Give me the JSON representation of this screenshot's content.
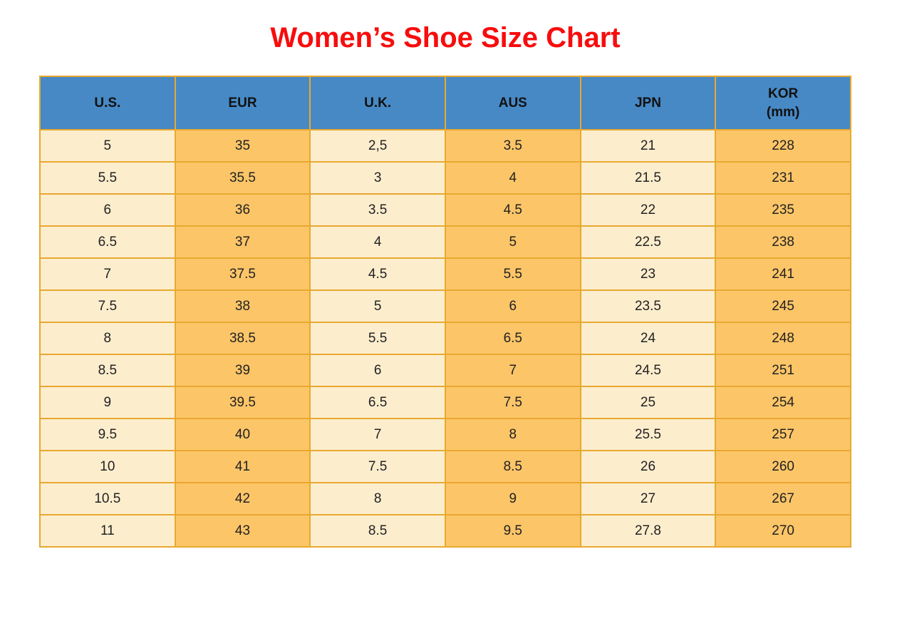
{
  "title": "Women’s Shoe Size Chart",
  "colors": {
    "title_red": "#f70d0d",
    "header_blue": "#4789c5",
    "cell_orange": "#fcc568",
    "cell_cream": "#fcedcd",
    "grid_gold": "#e8a92f",
    "text_dark": "#222222"
  },
  "chart_data": {
    "type": "table",
    "title": "Women’s Shoe Size Chart",
    "legend_position": "none",
    "grid": true,
    "columns": [
      {
        "label": "U.S.",
        "sublabel": ""
      },
      {
        "label": "EUR",
        "sublabel": ""
      },
      {
        "label": "U.K.",
        "sublabel": ""
      },
      {
        "label": "AUS",
        "sublabel": ""
      },
      {
        "label": "JPN",
        "sublabel": ""
      },
      {
        "label": "KOR",
        "sublabel": "(mm)"
      }
    ],
    "rows": [
      [
        "5",
        "35",
        "2,5",
        "3.5",
        "21",
        "228"
      ],
      [
        "5.5",
        "35.5",
        "3",
        "4",
        "21.5",
        "231"
      ],
      [
        "6",
        "36",
        "3.5",
        "4.5",
        "22",
        "235"
      ],
      [
        "6.5",
        "37",
        "4",
        "5",
        "22.5",
        "238"
      ],
      [
        "7",
        "37.5",
        "4.5",
        "5.5",
        "23",
        "241"
      ],
      [
        "7.5",
        "38",
        "5",
        "6",
        "23.5",
        "245"
      ],
      [
        "8",
        "38.5",
        "5.5",
        "6.5",
        "24",
        "248"
      ],
      [
        "8.5",
        "39",
        "6",
        "7",
        "24.5",
        "251"
      ],
      [
        "9",
        "39.5",
        "6.5",
        "7.5",
        "25",
        "254"
      ],
      [
        "9.5",
        "40",
        "7",
        "8",
        "25.5",
        "257"
      ],
      [
        "10",
        "41",
        "7.5",
        "8.5",
        "26",
        "260"
      ],
      [
        "10.5",
        "42",
        "8",
        "9",
        "27",
        "267"
      ],
      [
        "11",
        "43",
        "8.5",
        "9.5",
        "27.8",
        "270"
      ]
    ]
  }
}
